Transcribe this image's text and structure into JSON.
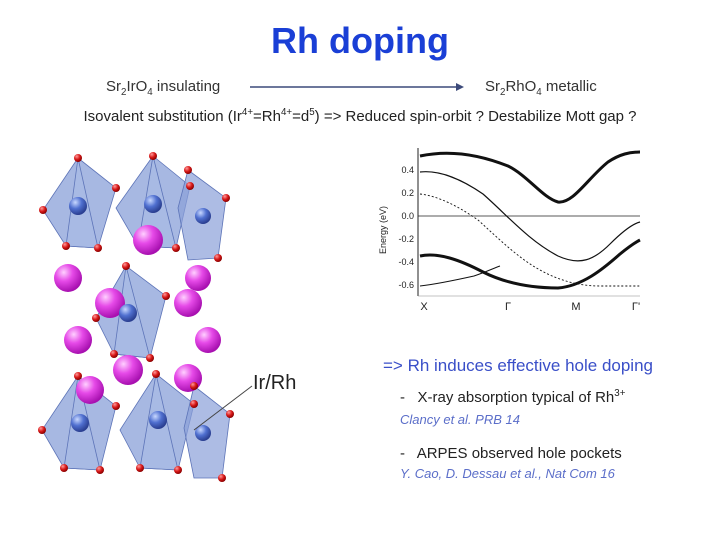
{
  "title": "Rh doping",
  "left_compound": {
    "a": "Sr",
    "a_sub": "2",
    "b": "IrO",
    "b_sub": "4",
    "state": "insulating"
  },
  "right_compound": {
    "a": "Sr",
    "a_sub": "2",
    "b": "RhO",
    "b_sub": "4",
    "state": "metallic"
  },
  "subtitle": {
    "prefix": "Isovalent substitution (Ir",
    "sup1": "4+",
    "mid1": "=Rh",
    "sup2": "4+",
    "mid2": "=d",
    "sup3": "5",
    "suffix": ") =>  Reduced spin-orbit ? Destabilize Mott gap ?"
  },
  "crystal_label": "Ir/Rh",
  "band_plot": {
    "ylabel": "Energy (eV)",
    "yticks": [
      "0.4",
      "0.2",
      "0.0",
      "-0.2",
      "-0.4",
      "-0.6"
    ],
    "xticks": [
      "X",
      "Γ",
      "M",
      "Γ'"
    ]
  },
  "claim": "=> Rh induces effective hole doping",
  "bullets": [
    {
      "dash": "-",
      "text": "X-ray absorption typical of Rh",
      "sup": "3+",
      "ref": "Clancy et al. PRB 14"
    },
    {
      "dash": "-",
      "text": "ARPES observed hole pockets",
      "sup": "",
      "ref": "Y. Cao, D. Dessau et al., Nat Com 16"
    }
  ],
  "colors": {
    "title": "#1a3fd6",
    "claim": "#3a4fc8",
    "ref": "#5b6ec9",
    "octahedron": "#8aa0d8",
    "sr_atom": "#e040e8",
    "o_atom": "#d81818"
  }
}
